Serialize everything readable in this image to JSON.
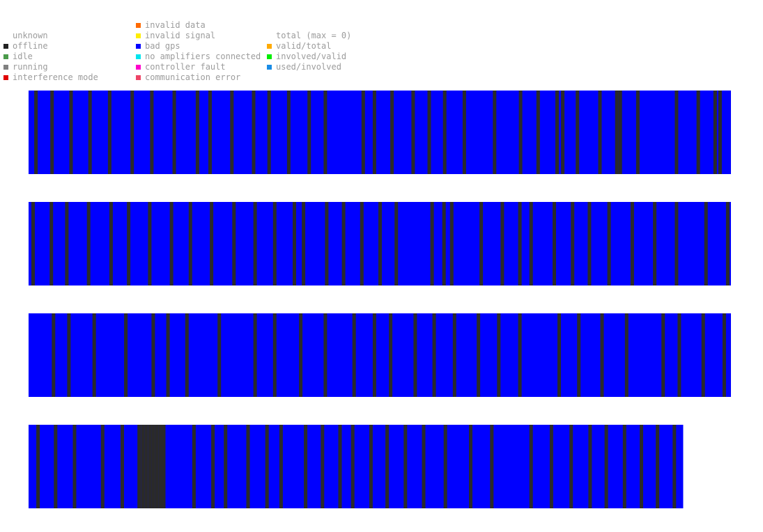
{
  "legend": {
    "columns": [
      [
        {
          "label": "unknown",
          "color": ""
        },
        {
          "label": "offline",
          "color": "#222222"
        },
        {
          "label": "idle",
          "color": "#4a9a4a"
        },
        {
          "label": "running",
          "color": "#808080"
        },
        {
          "label": "interference mode",
          "color": "#e00000"
        }
      ],
      [
        {
          "label": "invalid data",
          "color": "#ff6a00"
        },
        {
          "label": "invalid signal",
          "color": "#ffee00"
        },
        {
          "label": "bad gps",
          "color": "#0000ff"
        },
        {
          "label": "no amplifiers connected",
          "color": "#00e5ee"
        },
        {
          "label": "controller fault",
          "color": "#ff00cc"
        },
        {
          "label": "communication error",
          "color": "#ee4466"
        }
      ],
      [
        {
          "label": "total (max = 0)",
          "color": ""
        },
        {
          "label": "valid/total",
          "color": "#ffaa00"
        },
        {
          "label": "involved/valid",
          "color": "#00ee00"
        },
        {
          "label": "used/involved",
          "color": "#1a8ce6"
        }
      ]
    ]
  },
  "chart_data": {
    "type": "heatmap",
    "background_state": "bad gps",
    "mark_state": "offline",
    "colors": {
      "bad gps": "#0000ff",
      "offline": "#2a2a2a"
    },
    "rows": [
      {
        "length": 1.0,
        "marks": [
          0.008,
          0.031,
          0.058,
          0.085,
          0.113,
          0.145,
          0.173,
          0.205,
          0.238,
          0.256,
          0.287,
          0.318,
          0.34,
          0.368,
          0.397,
          0.42,
          0.474,
          0.49,
          0.515,
          0.545,
          0.568,
          0.59,
          0.618,
          0.661,
          0.698,
          0.723,
          0.75,
          0.758,
          0.779,
          0.811,
          0.835,
          0.84,
          0.865,
          0.92,
          0.951,
          0.975,
          0.982
        ]
      },
      {
        "length": 1.0,
        "marks": [
          0.004,
          0.03,
          0.052,
          0.083,
          0.115,
          0.14,
          0.17,
          0.201,
          0.228,
          0.258,
          0.29,
          0.32,
          0.348,
          0.376,
          0.389,
          0.422,
          0.446,
          0.472,
          0.498,
          0.521,
          0.572,
          0.589,
          0.6,
          0.642,
          0.672,
          0.697,
          0.713,
          0.746,
          0.772,
          0.796,
          0.824,
          0.857,
          0.889,
          0.92,
          0.962,
          0.993
        ]
      },
      {
        "length": 1.0,
        "marks": [
          0.033,
          0.055,
          0.091,
          0.136,
          0.175,
          0.196,
          0.223,
          0.269,
          0.32,
          0.348,
          0.385,
          0.42,
          0.461,
          0.49,
          0.513,
          0.548,
          0.575,
          0.604,
          0.638,
          0.667,
          0.697,
          0.753,
          0.781,
          0.814,
          0.849,
          0.901,
          0.924,
          0.958,
          0.988
        ]
      },
      {
        "length": 0.932,
        "marks": [
          0.011,
          0.036,
          0.063,
          0.103,
          0.131,
          0.155,
          0.16,
          0.165,
          0.17,
          0.175,
          0.18,
          0.185,
          0.19,
          0.233,
          0.26,
          0.278,
          0.31,
          0.337,
          0.357,
          0.392,
          0.416,
          0.441,
          0.459,
          0.485,
          0.508,
          0.534,
          0.56,
          0.591,
          0.627,
          0.657,
          0.713,
          0.742,
          0.77,
          0.797,
          0.82,
          0.846,
          0.87,
          0.893,
          0.917
        ]
      }
    ]
  }
}
